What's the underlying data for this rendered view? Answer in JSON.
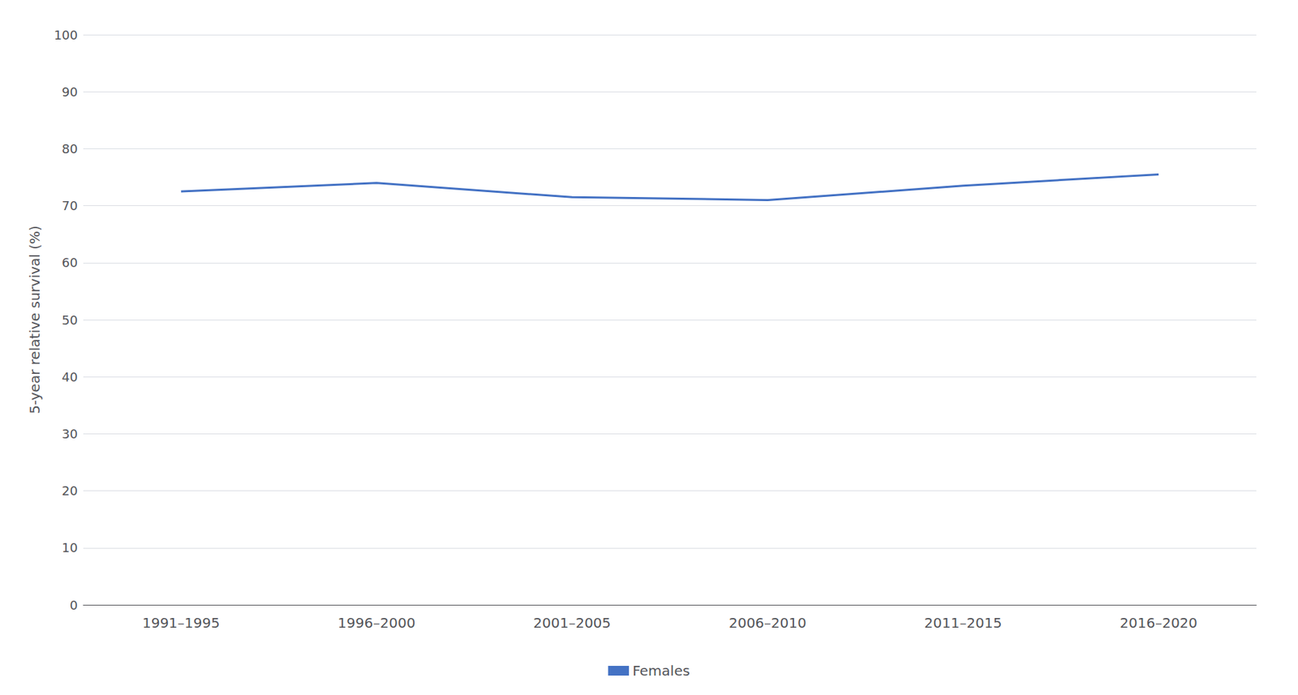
{
  "chart_data": {
    "type": "line",
    "ylabel": "5-year relative survival (%)",
    "categories": [
      "1991–1995",
      "1996–2000",
      "2001–2005",
      "2006–2010",
      "2011–2015",
      "2016–2020"
    ],
    "series": [
      {
        "name": "Females",
        "color": "#4472C4",
        "values": [
          72.5,
          74.0,
          71.5,
          71.0,
          73.5,
          75.5
        ]
      }
    ],
    "ylim": [
      0,
      100
    ],
    "yticks": [
      0,
      10,
      20,
      30,
      40,
      50,
      60,
      70,
      80,
      90,
      100
    ],
    "grid": true,
    "legend": "bottom"
  }
}
